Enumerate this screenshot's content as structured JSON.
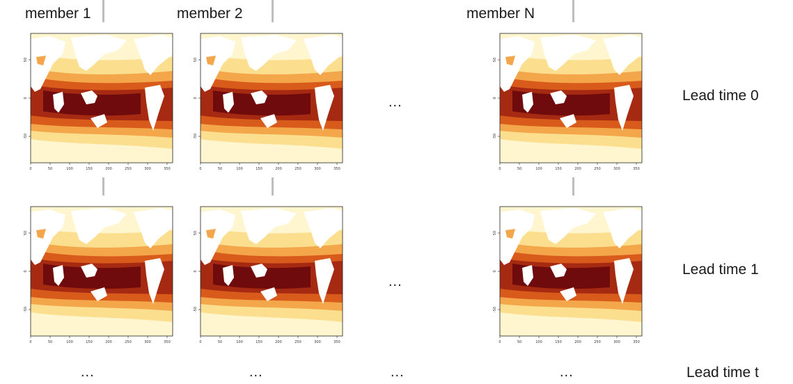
{
  "columns": [
    {
      "label": "member 1"
    },
    {
      "label": "member 2"
    },
    {
      "label": "member N"
    }
  ],
  "rows": [
    {
      "label": "Lead time 0"
    },
    {
      "label": "Lead time 1"
    },
    {
      "label": "Lead time t"
    }
  ],
  "ellipsis": "...",
  "axes": {
    "x_ticks": [
      "0",
      "50",
      "100",
      "150",
      "200",
      "250",
      "300",
      "350"
    ],
    "y_ticks": [
      "50",
      "0",
      "-50"
    ]
  },
  "colors": {
    "cold": "#fff6cf",
    "cool": "#fbdf8f",
    "mild": "#f3a64a",
    "warm": "#d95b1c",
    "hot": "#a62a12",
    "hottest": "#700b0d",
    "land": "#ffffff"
  }
}
